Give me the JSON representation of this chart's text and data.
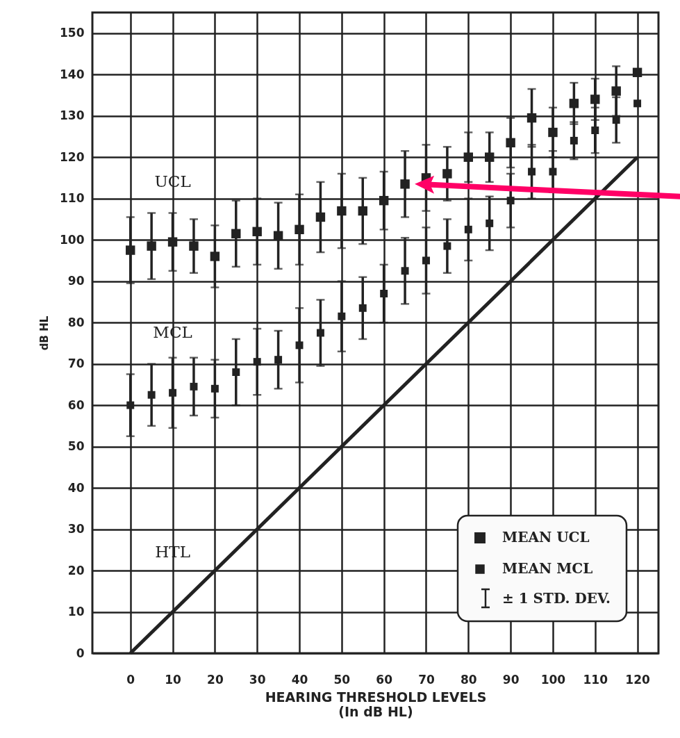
{
  "chart_data": {
    "type": "scatter",
    "xlabel": "HEARING THRESHOLD LEVELS\n(In dB HL)",
    "ylabel": "dB HL",
    "x": [
      0,
      5,
      10,
      15,
      20,
      25,
      30,
      35,
      40,
      45,
      50,
      55,
      60,
      65,
      70,
      75,
      80,
      85,
      90,
      95,
      100,
      105,
      110,
      115,
      120
    ],
    "series": [
      {
        "name": "MEAN UCL",
        "color": "#222222",
        "marker": "square",
        "values": [
          97.5,
          98.5,
          99.5,
          98.5,
          96,
          101.5,
          102,
          101,
          102.5,
          105.5,
          107,
          107,
          109.5,
          113.5,
          115,
          116,
          120,
          120,
          123.5,
          129.5,
          126,
          133,
          134,
          136,
          140.5
        ],
        "errors": [
          8,
          8,
          7,
          6.5,
          7.5,
          8,
          8,
          8,
          8.5,
          8.5,
          9,
          8,
          7,
          8,
          8,
          6.5,
          6,
          6,
          6,
          7,
          6,
          5,
          5,
          6,
          null
        ]
      },
      {
        "name": "MEAN MCL",
        "color": "#222222",
        "marker": "square",
        "values": [
          60,
          62.5,
          63,
          64.5,
          64,
          68,
          70.5,
          71,
          74.5,
          77.5,
          81.5,
          83.5,
          87,
          92.5,
          95,
          98.5,
          102.5,
          104,
          109.5,
          116.5,
          116.5,
          124,
          126.5,
          129,
          133
        ],
        "errors": [
          7.5,
          7.5,
          8.5,
          7,
          7,
          8,
          8,
          7,
          9,
          8,
          8.5,
          7.5,
          7,
          8,
          8,
          6.5,
          7.5,
          6.5,
          6.5,
          6.5,
          5,
          4.5,
          5.5,
          5.5,
          null
        ]
      },
      {
        "type": "line",
        "color": "#222222",
        "x": [
          0,
          120
        ],
        "values": [
          0,
          120
        ]
      }
    ],
    "annotations": [
      "UCL",
      "MCL",
      "HTL",
      "± 1 STD. DEV."
    ],
    "xlim": [
      -9,
      125
    ],
    "ylim": [
      0,
      155
    ],
    "xticks": [
      0,
      10,
      20,
      30,
      40,
      50,
      60,
      70,
      80,
      90,
      100,
      110,
      120
    ],
    "yticks": [
      0,
      10,
      20,
      30,
      40,
      50,
      60,
      70,
      80,
      90,
      100,
      110,
      120,
      130,
      140,
      150
    ],
    "grid": true,
    "legend": "bottom right"
  }
}
